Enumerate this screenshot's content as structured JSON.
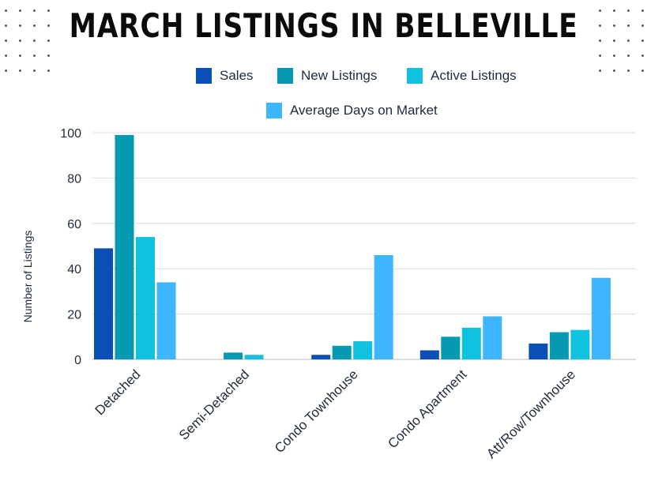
{
  "title": "MARCH LISTINGS IN BELLEVILLE",
  "chart_data": {
    "type": "bar",
    "title": "MARCH LISTINGS IN BELLEVILLE",
    "xlabel": "",
    "ylabel": "Number of Listings",
    "ylim": [
      0,
      100
    ],
    "yticks": [
      0,
      20,
      40,
      60,
      80,
      100
    ],
    "grid": true,
    "legend_position": "top",
    "categories": [
      "Detached",
      "Semi-Detached",
      "Condo Townhouse",
      "Condo Apartment",
      "Att/Row/Townhouse"
    ],
    "series": [
      {
        "name": "Sales",
        "color": "#0a4fb5",
        "values": [
          49,
          0,
          2,
          4,
          7
        ]
      },
      {
        "name": "New Listings",
        "color": "#0599b2",
        "values": [
          99,
          3,
          6,
          10,
          12
        ]
      },
      {
        "name": "Active Listings",
        "color": "#0fc3e0",
        "values": [
          54,
          2,
          8,
          14,
          13
        ]
      },
      {
        "name": "Average Days on Market",
        "color": "#3db6ff",
        "values": [
          34,
          0,
          46,
          19,
          36
        ]
      }
    ]
  }
}
